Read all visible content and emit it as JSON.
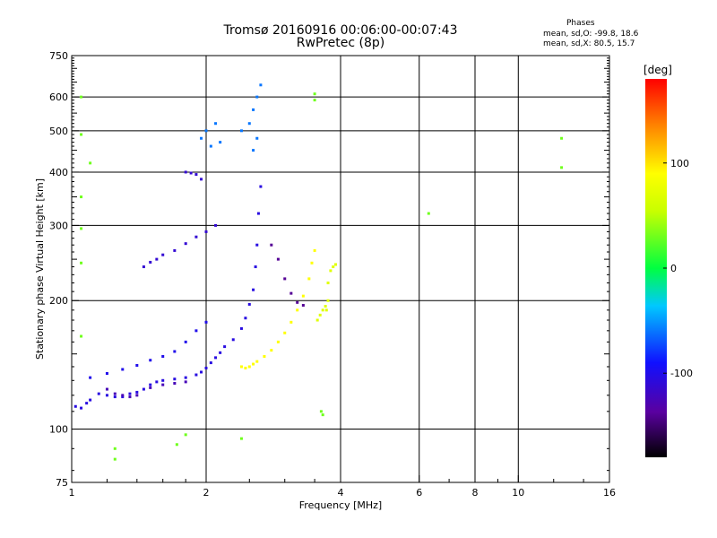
{
  "header": {
    "title_line1": "Tromsø 20160916 00:06:00-00:07:43",
    "title_line2": "RwPretec (8p)",
    "phases_heading": "Phases",
    "phases_stat_o": "mean, sd,O: -99.8, 18.6",
    "phases_stat_x": "mean, sd,X: 80.5, 15.7"
  },
  "colorbar": {
    "label": "[deg]",
    "tick_labels": [
      "100",
      "0",
      "-100"
    ],
    "tick_values": [
      100,
      0,
      -100
    ],
    "range": [
      -180,
      180
    ]
  },
  "chart_data": {
    "type": "scatter",
    "title": "Tromsø 20160916 00:06:00-00:07:43",
    "subtitle": "RwPretec (8p)",
    "xlabel": "Frequency [MHz]",
    "ylabel": "Stationary phase Virtual Height [km]",
    "x_scale": "log",
    "y_scale": "log",
    "xlim": [
      1,
      16
    ],
    "ylim": [
      75,
      750
    ],
    "x_ticks": [
      1,
      2,
      4,
      6,
      8,
      10,
      16
    ],
    "x_tick_labels": [
      "1",
      "2",
      "4",
      "6",
      "8",
      "10",
      "16"
    ],
    "x_minor_ticks": [
      1.2,
      1.4,
      1.6,
      1.8,
      2.5,
      3,
      3.5,
      7,
      9,
      12,
      14
    ],
    "y_ticks": [
      75,
      100,
      200,
      300,
      400,
      500,
      600,
      750
    ],
    "y_tick_labels": [
      "75",
      "100",
      "200",
      "300",
      "400",
      "500",
      "600",
      "750"
    ],
    "grid": true,
    "color_scale": "rainbow phase, -180 to 180 deg",
    "series": [
      {
        "trace": "O-mode lower trace",
        "phase_deg": -105,
        "points": [
          [
            1.02,
            113
          ],
          [
            1.05,
            112
          ],
          [
            1.08,
            115
          ],
          [
            1.1,
            117
          ],
          [
            1.15,
            121
          ],
          [
            1.2,
            120
          ],
          [
            1.25,
            119
          ],
          [
            1.3,
            119
          ],
          [
            1.35,
            121
          ],
          [
            1.4,
            122
          ],
          [
            1.45,
            124
          ],
          [
            1.5,
            127
          ],
          [
            1.55,
            129
          ],
          [
            1.6,
            130
          ],
          [
            1.7,
            131
          ],
          [
            1.8,
            132
          ],
          [
            1.9,
            134
          ],
          [
            1.95,
            136
          ],
          [
            2.0,
            139
          ],
          [
            2.05,
            143
          ],
          [
            2.1,
            147
          ],
          [
            2.15,
            151
          ],
          [
            2.2,
            156
          ],
          [
            2.3,
            162
          ],
          [
            2.4,
            172
          ],
          [
            2.45,
            182
          ],
          [
            2.5,
            196
          ],
          [
            2.55,
            212
          ],
          [
            2.58,
            240
          ],
          [
            2.6,
            270
          ],
          [
            2.62,
            320
          ],
          [
            2.65,
            370
          ]
        ]
      },
      {
        "trace": "O-mode lower trace (dark)",
        "phase_deg": -125,
        "points": [
          [
            1.2,
            124
          ],
          [
            1.25,
            121
          ],
          [
            1.3,
            120
          ],
          [
            1.35,
            119
          ],
          [
            1.4,
            120
          ],
          [
            1.5,
            125
          ],
          [
            1.6,
            127
          ],
          [
            1.7,
            128
          ],
          [
            1.8,
            129
          ]
        ]
      },
      {
        "trace": "O-mode upper trace",
        "phase_deg": -100,
        "points": [
          [
            1.1,
            132
          ],
          [
            1.2,
            135
          ],
          [
            1.3,
            138
          ],
          [
            1.4,
            141
          ],
          [
            1.5,
            145
          ],
          [
            1.6,
            148
          ],
          [
            1.7,
            152
          ],
          [
            1.8,
            160
          ],
          [
            1.9,
            170
          ],
          [
            2.0,
            178
          ]
        ]
      },
      {
        "trace": "O-mode mid trace",
        "phase_deg": -112,
        "points": [
          [
            1.45,
            240
          ],
          [
            1.5,
            246
          ],
          [
            1.55,
            250
          ],
          [
            1.6,
            256
          ],
          [
            1.7,
            262
          ],
          [
            1.8,
            272
          ],
          [
            1.9,
            282
          ],
          [
            2.0,
            290
          ],
          [
            2.1,
            300
          ],
          [
            1.8,
            400
          ],
          [
            1.85,
            398
          ],
          [
            1.9,
            395
          ],
          [
            1.95,
            385
          ]
        ]
      },
      {
        "trace": "high cluster",
        "phase_deg": -60,
        "points": [
          [
            1.95,
            480
          ],
          [
            2.0,
            500
          ],
          [
            2.05,
            460
          ],
          [
            2.1,
            520
          ],
          [
            2.15,
            470
          ],
          [
            2.4,
            500
          ],
          [
            2.5,
            520
          ],
          [
            2.55,
            560
          ],
          [
            2.6,
            600
          ],
          [
            2.65,
            640
          ],
          [
            2.6,
            480
          ],
          [
            2.55,
            450
          ]
        ]
      },
      {
        "trace": "X-mode trace",
        "phase_deg": 90,
        "points": [
          [
            2.4,
            140
          ],
          [
            2.45,
            139
          ],
          [
            2.5,
            140
          ],
          [
            2.55,
            142
          ],
          [
            2.6,
            144
          ],
          [
            2.7,
            148
          ],
          [
            2.8,
            153
          ],
          [
            2.9,
            160
          ],
          [
            3.0,
            168
          ],
          [
            3.1,
            178
          ],
          [
            3.2,
            190
          ],
          [
            3.3,
            205
          ],
          [
            3.4,
            225
          ],
          [
            3.45,
            245
          ],
          [
            3.5,
            262
          ]
        ]
      },
      {
        "trace": "X-mode cusp",
        "phase_deg": 70,
        "points": [
          [
            3.55,
            180
          ],
          [
            3.6,
            185
          ],
          [
            3.65,
            190
          ],
          [
            3.7,
            194
          ],
          [
            3.72,
            190
          ],
          [
            3.75,
            200
          ],
          [
            3.75,
            220
          ],
          [
            3.8,
            235
          ],
          [
            3.85,
            240
          ],
          [
            3.9,
            243
          ]
        ]
      },
      {
        "trace": "X-mode tail (dark)",
        "phase_deg": -140,
        "points": [
          [
            2.8,
            270
          ],
          [
            2.9,
            250
          ],
          [
            3.0,
            225
          ],
          [
            3.1,
            208
          ],
          [
            3.2,
            198
          ],
          [
            3.3,
            195
          ]
        ]
      },
      {
        "trace": "scatter",
        "phase_deg": 30,
        "points": [
          [
            1.05,
            600
          ],
          [
            1.05,
            490
          ],
          [
            1.05,
            350
          ],
          [
            1.05,
            295
          ],
          [
            1.05,
            245
          ],
          [
            1.05,
            165
          ],
          [
            1.1,
            420
          ],
          [
            1.25,
            90
          ],
          [
            1.25,
            85
          ],
          [
            1.72,
            92
          ],
          [
            1.8,
            97
          ],
          [
            2.4,
            95
          ],
          [
            3.5,
            590
          ],
          [
            3.5,
            610
          ],
          [
            3.62,
            110
          ],
          [
            3.65,
            108
          ],
          [
            6.3,
            320
          ],
          [
            12.5,
            480
          ],
          [
            12.5,
            410
          ]
        ]
      }
    ]
  }
}
